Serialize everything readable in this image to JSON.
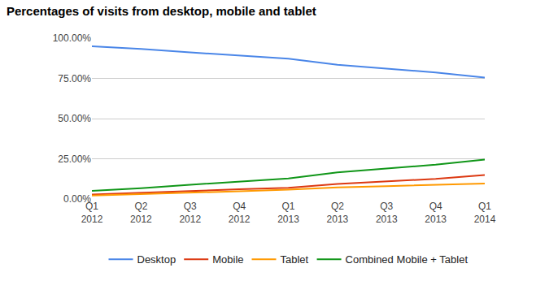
{
  "chart_data": {
    "type": "line",
    "title": "Percentages of visits from desktop, mobile and tablet",
    "categories": [
      "Q1 2012",
      "Q2 2012",
      "Q3 2012",
      "Q4 2012",
      "Q1 2013",
      "Q2 2013",
      "Q3 2013",
      "Q4 2013",
      "Q1 2014"
    ],
    "series": [
      {
        "name": "Desktop",
        "color": "#4a86e8",
        "values": [
          95.0,
          93.3,
          91.2,
          89.2,
          87.2,
          83.5,
          81.0,
          78.7,
          75.5
        ]
      },
      {
        "name": "Mobile",
        "color": "#dc3912",
        "values": [
          2.8,
          3.7,
          4.9,
          6.0,
          7.0,
          9.3,
          11.0,
          12.5,
          14.9
        ]
      },
      {
        "name": "Tablet",
        "color": "#ff9900",
        "values": [
          2.2,
          3.0,
          3.9,
          4.8,
          5.8,
          7.2,
          8.0,
          8.8,
          9.6
        ]
      },
      {
        "name": "Combined Mobile + Tablet",
        "color": "#109618",
        "values": [
          5.0,
          6.7,
          8.8,
          10.8,
          12.8,
          16.5,
          19.0,
          21.3,
          24.5
        ]
      }
    ],
    "ylim": [
      0,
      100
    ],
    "yticks": [
      {
        "value": 0,
        "label": "0.00%"
      },
      {
        "value": 25,
        "label": "25.00%"
      },
      {
        "value": 50,
        "label": "50.00%"
      },
      {
        "value": 75,
        "label": "75.00%"
      },
      {
        "value": 100,
        "label": "100.00%"
      }
    ],
    "grid": true,
    "legend": "bottom"
  }
}
